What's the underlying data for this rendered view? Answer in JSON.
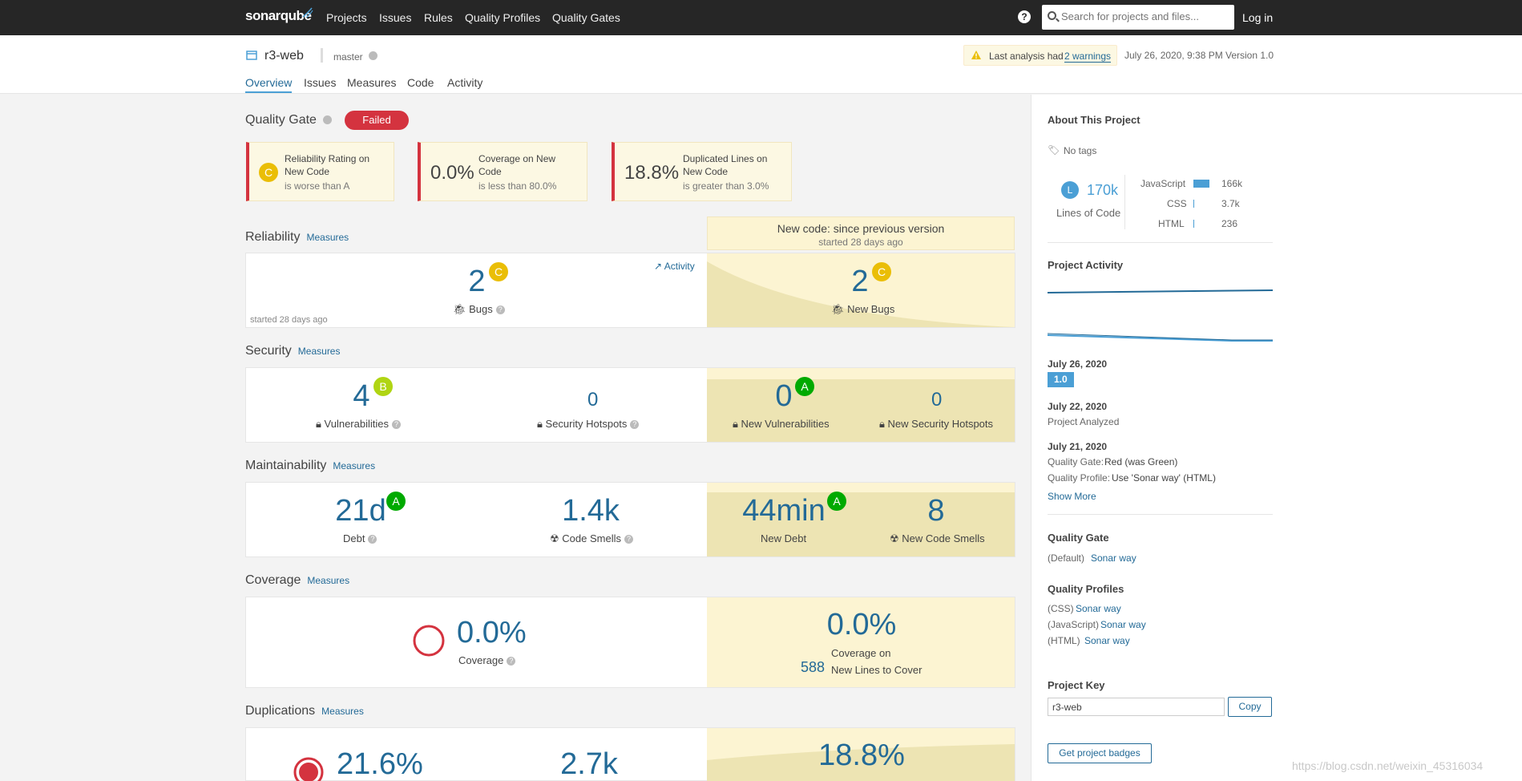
{
  "nav": {
    "logo": "sonarqube",
    "links": [
      "Projects",
      "Issues",
      "Rules",
      "Quality Profiles",
      "Quality Gates"
    ],
    "help": "?",
    "search_placeholder": "Search for projects and files...",
    "login": "Log in"
  },
  "project": {
    "name": "r3-web",
    "branch": "master",
    "warning_prefix": "Last analysis had",
    "warning_link": "2 warnings",
    "date": "July 26, 2020, 9:38 PM",
    "version": "Version 1.0",
    "tabs": [
      "Overview",
      "Issues",
      "Measures",
      "Code",
      "Activity"
    ]
  },
  "quality_gate": {
    "title": "Quality Gate",
    "status": "Failed",
    "conditions": [
      {
        "value": "C",
        "label": "Reliability Rating on New Code",
        "label1": "Reliability Rating on",
        "label2": "New Code",
        "sub": "is worse than A"
      },
      {
        "value": "0.0%",
        "label1": "Coverage on New",
        "label2": "Code",
        "sub": "is less than 80.0%"
      },
      {
        "value": "18.8%",
        "label1": "Duplicated Lines on",
        "label2": "New Code",
        "sub": "is greater than 3.0%"
      }
    ]
  },
  "new_code": {
    "title": "New code: since previous version",
    "started": "started 28 days ago"
  },
  "reliability": {
    "title": "Reliability",
    "measures": "Measures",
    "bugs": "2",
    "bugs_rating": "C",
    "bugs_label": "Bugs",
    "activity": "Activity",
    "started": "started 28 days ago",
    "new_bugs": "2",
    "new_bugs_rating": "C",
    "new_bugs_label": "New Bugs"
  },
  "security": {
    "title": "Security",
    "measures": "Measures",
    "vulns": "4",
    "vulns_rating": "B",
    "vulns_label": "Vulnerabilities",
    "hotspots": "0",
    "hotspots_label": "Security Hotspots",
    "new_vulns": "0",
    "new_vulns_rating": "A",
    "new_vulns_label": "New Vulnerabilities",
    "new_hotspots": "0",
    "new_hotspots_label": "New Security Hotspots"
  },
  "maintainability": {
    "title": "Maintainability",
    "measures": "Measures",
    "debt": "21d",
    "debt_rating": "A",
    "debt_label": "Debt",
    "smells": "1.4k",
    "smells_label": "Code Smells",
    "new_debt": "44min",
    "new_debt_rating": "A",
    "new_debt_label": "New Debt",
    "new_smells": "8",
    "new_smells_label": "New Code Smells"
  },
  "coverage": {
    "title": "Coverage",
    "measures": "Measures",
    "value": "0.0%",
    "label": "Coverage",
    "new_value": "0.0%",
    "new_label1": "Coverage on",
    "new_lines": "588",
    "new_label2": "New Lines to Cover"
  },
  "duplications": {
    "title": "Duplications",
    "measures": "Measures",
    "value": "21.6%",
    "blocks": "2.7k",
    "new_value": "18.8%"
  },
  "sidebar": {
    "about": "About This Project",
    "tags": "No tags",
    "loc_badge": "L",
    "loc": "170k",
    "loc_label": "Lines of Code",
    "languages": [
      {
        "name": "JavaScript",
        "value": "166k",
        "share": 0.976
      },
      {
        "name": "CSS",
        "value": "3.7k",
        "share": 0.022
      },
      {
        "name": "HTML",
        "value": "236",
        "share": 0.002
      }
    ],
    "activity_title": "Project Activity",
    "events": [
      {
        "date": "July 26, 2020",
        "version": "1.0"
      },
      {
        "date": "July 22, 2020",
        "text": "Project Analyzed"
      },
      {
        "date": "July 21, 2020",
        "gate_label": "Quality Gate:",
        "gate_value": "Red (was Green)",
        "profile_label": "Quality Profile:",
        "profile_value": "Use 'Sonar way' (HTML)"
      }
    ],
    "show_more": "Show More",
    "qg_title": "Quality Gate",
    "qg_default": "(Default)",
    "qg_name": "Sonar way",
    "qp_title": "Quality Profiles",
    "profiles": [
      {
        "lang": "(CSS)",
        "name": "Sonar way"
      },
      {
        "lang": "(JavaScript)",
        "name": "Sonar way"
      },
      {
        "lang": "(HTML)",
        "name": "Sonar way"
      }
    ],
    "key_title": "Project Key",
    "key_value": "r3-web",
    "copy": "Copy",
    "badges": "Get project badges"
  },
  "watermark": "https://blog.csdn.net/weixin_45316034",
  "colors": {
    "accent": "#236a97",
    "failed": "#d4333f",
    "ratingC": "#eabe06",
    "ratingB": "#b0d513",
    "ratingA": "#00aa00",
    "newcode": "#fcf4d2"
  }
}
